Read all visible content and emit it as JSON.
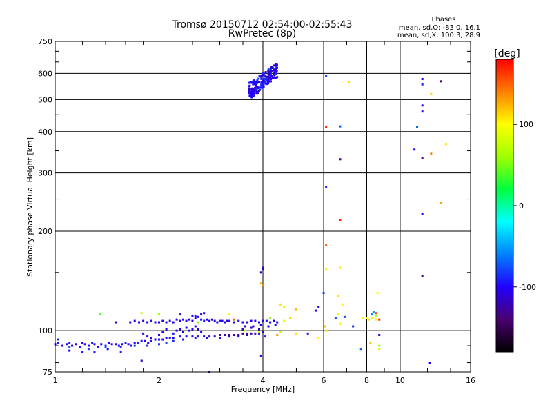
{
  "chart_data": {
    "type": "scatter",
    "title": "Tromsø 20150712 02:54:00-02:55:43",
    "subtitle": "RwPretec (8p)",
    "stats": {
      "title": "Phases",
      "line1": "mean, sd,O: -83.0, 16.1",
      "line2": "mean, sd,X: 100.3, 28.9"
    },
    "xlabel": "Frequency [MHz]",
    "ylabel": "Stationary phase Virtual Height [km]",
    "xscale": "log2",
    "yscale": "log",
    "xlim": [
      1,
      16
    ],
    "ylim": [
      75,
      750
    ],
    "xticks": [
      {
        "value": 1,
        "label": "1"
      },
      {
        "value": 2,
        "label": "2"
      },
      {
        "value": 4,
        "label": "4"
      },
      {
        "value": 6,
        "label": "6"
      },
      {
        "value": 8,
        "label": "8"
      },
      {
        "value": 10,
        "label": "10"
      },
      {
        "value": 16,
        "label": "16"
      }
    ],
    "yticks": [
      {
        "value": 75,
        "label": "75"
      },
      {
        "value": 100,
        "label": "100"
      },
      {
        "value": 200,
        "label": "200"
      },
      {
        "value": 300,
        "label": "300"
      },
      {
        "value": 400,
        "label": "400"
      },
      {
        "value": 500,
        "label": "500"
      },
      {
        "value": 600,
        "label": "600"
      },
      {
        "value": 750,
        "label": "750"
      }
    ],
    "grid": true,
    "colorbar": {
      "label": "[deg]",
      "range": [
        -180,
        180
      ],
      "ticks": [
        {
          "value": 100,
          "label": "100"
        },
        {
          "value": 0,
          "label": "0"
        },
        {
          "value": -100,
          "label": "-100"
        }
      ],
      "colors": [
        "#000000",
        "#4a0070",
        "#2200ff",
        "#0080ff",
        "#00ffff",
        "#00ff40",
        "#a0ff00",
        "#ffff00",
        "#ff8000",
        "#ff0000"
      ]
    },
    "points": [
      [
        1.0,
        91,
        -100
      ],
      [
        1.02,
        92,
        -95
      ],
      [
        1.05,
        90,
        -105
      ],
      [
        1.08,
        91,
        -100
      ],
      [
        1.1,
        92,
        -90
      ],
      [
        1.12,
        90,
        -110
      ],
      [
        1.15,
        91,
        -100
      ],
      [
        1.18,
        89,
        -95
      ],
      [
        1.2,
        92,
        -100
      ],
      [
        1.22,
        91,
        -105
      ],
      [
        1.25,
        90,
        -100
      ],
      [
        1.28,
        92,
        -90
      ],
      [
        1.3,
        91,
        -100
      ],
      [
        1.33,
        89,
        -95
      ],
      [
        1.36,
        91,
        -100
      ],
      [
        1.4,
        90,
        -85
      ],
      [
        1.43,
        92,
        -100
      ],
      [
        1.46,
        91,
        -95
      ],
      [
        1.5,
        91,
        -100
      ],
      [
        1.53,
        90,
        -105
      ],
      [
        1.56,
        91,
        -100
      ],
      [
        1.6,
        92,
        -90
      ],
      [
        1.63,
        91,
        -100
      ],
      [
        1.66,
        90,
        -95
      ],
      [
        1.7,
        92,
        -100
      ],
      [
        1.74,
        92,
        -90
      ],
      [
        1.78,
        93,
        -95
      ],
      [
        1.82,
        93,
        -100
      ],
      [
        1.86,
        92,
        -100
      ],
      [
        1.9,
        93,
        -95
      ],
      [
        1.95,
        94,
        -100
      ],
      [
        2.0,
        94,
        -95
      ],
      [
        2.05,
        94,
        -100
      ],
      [
        2.1,
        95,
        -100
      ],
      [
        2.15,
        95,
        -95
      ],
      [
        2.2,
        95,
        -100
      ],
      [
        2.3,
        96,
        -95
      ],
      [
        2.4,
        96,
        -100
      ],
      [
        2.5,
        96,
        -105
      ],
      [
        2.6,
        96,
        -100
      ],
      [
        2.7,
        96,
        -110
      ],
      [
        2.8,
        96,
        -115
      ],
      [
        2.9,
        96,
        -120
      ],
      [
        3.0,
        97,
        -125
      ],
      [
        3.1,
        97,
        -125
      ],
      [
        3.2,
        97,
        -125
      ],
      [
        3.3,
        97,
        -130
      ],
      [
        3.4,
        97,
        -130
      ],
      [
        3.5,
        98,
        -130
      ],
      [
        3.6,
        98,
        -125
      ],
      [
        3.7,
        98,
        -125
      ],
      [
        3.8,
        98,
        -120
      ],
      [
        3.9,
        98,
        -115
      ],
      [
        4.0,
        99,
        -110
      ],
      [
        1.02,
        94,
        -85
      ],
      [
        1.1,
        89,
        -75
      ],
      [
        1.25,
        88,
        -80
      ],
      [
        1.4,
        89,
        -80
      ],
      [
        1.55,
        89,
        -85
      ],
      [
        1.7,
        90,
        -80
      ],
      [
        1.85,
        90,
        -85
      ],
      [
        2.0,
        91,
        -85
      ],
      [
        2.1,
        92,
        -80
      ],
      [
        2.2,
        93,
        -85
      ],
      [
        2.35,
        94,
        -90
      ],
      [
        2.55,
        95,
        -90
      ],
      [
        2.75,
        95,
        -95
      ],
      [
        3.0,
        95,
        -100
      ],
      [
        3.2,
        96,
        -110
      ],
      [
        3.4,
        96,
        -115
      ],
      [
        3.6,
        97,
        -120
      ],
      [
        1.1,
        87,
        -105
      ],
      [
        1.2,
        86,
        -100
      ],
      [
        1.3,
        86,
        -95
      ],
      [
        1.42,
        88,
        -100
      ],
      [
        1.55,
        86,
        -95
      ],
      [
        1.8,
        98,
        -100
      ],
      [
        1.85,
        96,
        -105
      ],
      [
        1.9,
        95,
        -100
      ],
      [
        2.0,
        97,
        -105
      ],
      [
        2.05,
        99,
        -100
      ],
      [
        2.1,
        101,
        -100
      ],
      [
        2.2,
        98,
        -95
      ],
      [
        2.25,
        100,
        -95
      ],
      [
        2.3,
        101,
        -100
      ],
      [
        2.35,
        99,
        -105
      ],
      [
        2.4,
        102,
        -100
      ],
      [
        2.45,
        100,
        -95
      ],
      [
        2.5,
        101,
        -100
      ],
      [
        2.55,
        103,
        -100
      ],
      [
        2.6,
        101,
        -105
      ],
      [
        2.65,
        99,
        -100
      ],
      [
        1.65,
        106,
        -105
      ],
      [
        1.7,
        107,
        -100
      ],
      [
        1.75,
        106,
        -100
      ],
      [
        1.8,
        107,
        -105
      ],
      [
        1.85,
        106,
        -100
      ],
      [
        1.9,
        107,
        -95
      ],
      [
        1.95,
        106,
        -100
      ],
      [
        2.0,
        106,
        -100
      ],
      [
        2.05,
        107,
        -105
      ],
      [
        2.1,
        106,
        -100
      ],
      [
        2.15,
        107,
        -95
      ],
      [
        2.2,
        106,
        -100
      ],
      [
        2.25,
        108,
        -100
      ],
      [
        2.3,
        107,
        -100
      ],
      [
        2.35,
        108,
        -95
      ],
      [
        2.4,
        107,
        -100
      ],
      [
        2.45,
        108,
        -100
      ],
      [
        2.5,
        107,
        -105
      ],
      [
        2.55,
        109,
        -100
      ],
      [
        2.6,
        110,
        -100
      ],
      [
        2.65,
        108,
        -100
      ],
      [
        2.7,
        107,
        -95
      ],
      [
        2.75,
        108,
        -100
      ],
      [
        2.8,
        107,
        -100
      ],
      [
        2.85,
        108,
        -105
      ],
      [
        2.9,
        107,
        -100
      ],
      [
        2.95,
        106,
        -100
      ],
      [
        3.0,
        107,
        -95
      ],
      [
        3.05,
        107,
        -100
      ],
      [
        3.1,
        106,
        -100
      ],
      [
        3.15,
        107,
        -105
      ],
      [
        3.2,
        107,
        -100
      ],
      [
        3.3,
        106,
        -100
      ],
      [
        3.4,
        107,
        -95
      ],
      [
        3.5,
        106,
        -100
      ],
      [
        3.6,
        106,
        -100
      ],
      [
        3.7,
        107,
        -100
      ],
      [
        3.8,
        107,
        -95
      ],
      [
        3.9,
        106,
        -100
      ],
      [
        4.0,
        107,
        -100
      ],
      [
        4.1,
        107,
        -95
      ],
      [
        4.2,
        106,
        -100
      ],
      [
        4.3,
        107,
        -100
      ],
      [
        4.4,
        106,
        -95
      ],
      [
        2.3,
        112,
        -95
      ],
      [
        2.5,
        111,
        -100
      ],
      [
        2.65,
        112,
        -105
      ],
      [
        2.7,
        113,
        -100
      ],
      [
        2.55,
        111,
        -95
      ],
      [
        3.55,
        103,
        -110
      ],
      [
        3.75,
        103,
        -105
      ],
      [
        3.95,
        104,
        -100
      ],
      [
        4.15,
        103,
        -100
      ],
      [
        4.35,
        104,
        -95
      ],
      [
        3.5,
        101,
        -120
      ],
      [
        3.7,
        102,
        -115
      ],
      [
        3.9,
        101,
        -110
      ],
      [
        1.35,
        112,
        40
      ],
      [
        1.5,
        106,
        -110
      ],
      [
        1.78,
        113,
        80
      ],
      [
        2.0,
        112,
        60
      ],
      [
        2.6,
        106,
        50
      ],
      [
        3.2,
        112,
        90
      ],
      [
        4.2,
        109,
        60
      ],
      [
        4.6,
        107,
        90
      ],
      [
        4.8,
        109,
        110
      ],
      [
        5.0,
        98,
        110
      ],
      [
        4.4,
        97,
        130
      ],
      [
        5.4,
        98,
        -100
      ],
      [
        5.8,
        95,
        100
      ],
      [
        4.5,
        99,
        80
      ],
      [
        3.9,
        99,
        70
      ],
      [
        3.55,
        100,
        70
      ],
      [
        4.05,
        96,
        -90
      ],
      [
        3.95,
        84,
        -110
      ],
      [
        3.3,
        108,
        150
      ],
      [
        1.78,
        81,
        -110
      ],
      [
        2.8,
        75,
        -115
      ],
      [
        4.0,
        155,
        -115
      ],
      [
        4.0,
        153,
        -115
      ],
      [
        3.95,
        150,
        -110
      ],
      [
        3.95,
        139,
        120
      ],
      [
        4.0,
        137,
        140
      ],
      [
        4.6,
        118,
        90
      ],
      [
        5.0,
        116,
        120
      ],
      [
        4.5,
        120,
        110
      ],
      [
        5.8,
        118,
        -110
      ],
      [
        5.7,
        115,
        -100
      ],
      [
        6.1,
        182,
        150
      ],
      [
        6.1,
        153,
        90
      ],
      [
        6.05,
        103,
        120
      ],
      [
        6.0,
        130,
        -80
      ],
      [
        6.6,
        127,
        110
      ],
      [
        6.7,
        155,
        105
      ],
      [
        6.6,
        112,
        90
      ],
      [
        6.8,
        120,
        105
      ],
      [
        6.7,
        105,
        100
      ],
      [
        6.5,
        109,
        -75
      ],
      [
        6.9,
        110,
        -80
      ],
      [
        7.3,
        103,
        -85
      ],
      [
        7.8,
        109,
        90
      ],
      [
        8.0,
        109,
        95
      ],
      [
        8.1,
        108,
        110
      ],
      [
        8.3,
        109,
        100
      ],
      [
        8.5,
        108,
        105
      ],
      [
        8.5,
        113,
        160
      ],
      [
        8.7,
        108,
        170
      ],
      [
        8.2,
        92,
        120
      ],
      [
        8.7,
        88,
        80
      ],
      [
        8.7,
        90,
        60
      ],
      [
        7.7,
        88,
        -70
      ],
      [
        8.7,
        97,
        -110
      ],
      [
        8.3,
        112,
        -60
      ],
      [
        8.4,
        114,
        -50
      ],
      [
        8.6,
        130,
        100
      ],
      [
        8.5,
        111,
        60
      ],
      [
        6.1,
        272,
        -90
      ],
      [
        6.1,
        413,
        170
      ],
      [
        6.1,
        590,
        -80
      ],
      [
        6.1,
        100,
        110
      ],
      [
        6.7,
        415,
        -70
      ],
      [
        6.7,
        330,
        -130
      ],
      [
        6.7,
        216,
        170
      ],
      [
        7.1,
        566,
        110
      ],
      [
        11.2,
        413,
        -70
      ],
      [
        11.6,
        577,
        -100
      ],
      [
        11.6,
        556,
        -90
      ],
      [
        11.6,
        480,
        -100
      ],
      [
        11.6,
        460,
        -100
      ],
      [
        11.6,
        332,
        -130
      ],
      [
        11.6,
        226,
        -100
      ],
      [
        11.6,
        146,
        -130
      ],
      [
        12.3,
        520,
        110
      ],
      [
        12.3,
        343,
        140
      ],
      [
        13.1,
        568,
        -130
      ],
      [
        13.6,
        367,
        110
      ],
      [
        13.1,
        243,
        130
      ],
      [
        11.0,
        353,
        -100
      ],
      [
        12.2,
        80,
        -100
      ]
    ],
    "f_cluster": {
      "xrange": [
        3.65,
        4.4
      ],
      "yrange": [
        500,
        640
      ],
      "phase": -100
    }
  }
}
